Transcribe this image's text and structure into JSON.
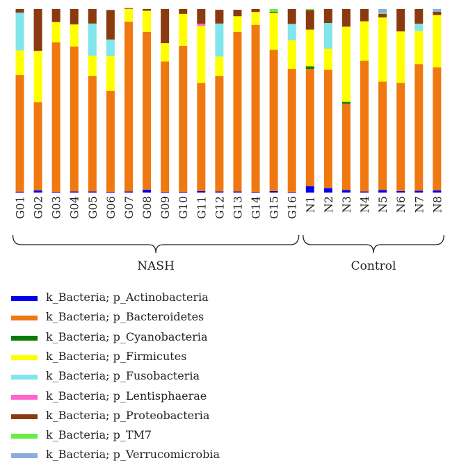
{
  "chart_data": {
    "type": "bar",
    "stacked": true,
    "normalized": true,
    "ylim": [
      0,
      1
    ],
    "categories": [
      "G01",
      "G02",
      "G03",
      "G04",
      "G05",
      "G06",
      "G07",
      "G08",
      "G09",
      "G10",
      "G11",
      "G12",
      "G13",
      "G14",
      "G15",
      "G16",
      "N1",
      "N2",
      "N3",
      "N4",
      "N5",
      "N6",
      "N7",
      "N8"
    ],
    "groups": [
      {
        "label": "NASH",
        "start": 0,
        "end": 15
      },
      {
        "label": "Control",
        "start": 16,
        "end": 23
      }
    ],
    "series": [
      {
        "name": "k_Bacteria; p_Actinobacteria",
        "color": "#0000ee",
        "values": [
          0.005,
          0.012,
          0.004,
          0.006,
          0.006,
          0.004,
          0.006,
          0.016,
          0.004,
          0.004,
          0.008,
          0.006,
          0.006,
          0.004,
          0.008,
          0.004,
          0.034,
          0.024,
          0.014,
          0.006,
          0.014,
          0.008,
          0.01,
          0.012
        ]
      },
      {
        "name": "k_Bacteria; p_Bacteroidetes",
        "color": "#f07810",
        "values": [
          0.635,
          0.48,
          0.815,
          0.79,
          0.63,
          0.55,
          0.925,
          0.86,
          0.71,
          0.795,
          0.59,
          0.63,
          0.87,
          0.91,
          0.77,
          0.67,
          0.64,
          0.645,
          0.47,
          0.712,
          0.59,
          0.59,
          0.69,
          0.67
        ]
      },
      {
        "name": "k_Bacteria; p_Cyanobacteria",
        "color": "#0a7a0a",
        "values": [
          0,
          0,
          0,
          0,
          0,
          0,
          0,
          0,
          0,
          0,
          0,
          0,
          0,
          0,
          0,
          0,
          0.014,
          0,
          0.01,
          0,
          0,
          0,
          0,
          0
        ]
      },
      {
        "name": "k_Bacteria; p_Firmicutes",
        "color": "#ffff00",
        "values": [
          0.135,
          0.28,
          0.11,
          0.12,
          0.11,
          0.19,
          0.07,
          0.115,
          0.1,
          0.175,
          0.31,
          0.105,
          0.085,
          0.07,
          0.2,
          0.155,
          0.2,
          0.115,
          0.41,
          0.215,
          0.35,
          0.28,
          0.18,
          0.285
        ]
      },
      {
        "name": "k_Bacteria; p_Fusobacteria",
        "color": "#80e6ec",
        "values": [
          0.205,
          0,
          0,
          0,
          0.175,
          0.09,
          0,
          0,
          0,
          0,
          0,
          0.18,
          0,
          0,
          0,
          0.09,
          0,
          0.14,
          0,
          0,
          0,
          0,
          0.04,
          0
        ]
      },
      {
        "name": "k_Bacteria; p_Lentisphaerae",
        "color": "#ff66cc",
        "values": [
          0,
          0,
          0,
          0,
          0,
          0,
          0,
          0,
          0,
          0,
          0.012,
          0,
          0,
          0,
          0,
          0,
          0,
          0,
          0,
          0,
          0,
          0,
          0,
          0
        ]
      },
      {
        "name": "k_Bacteria; p_Proteobacteria",
        "color": "#8b3a0f",
        "values": [
          0.02,
          0.228,
          0.071,
          0.084,
          0.079,
          0.161,
          0.004,
          0.009,
          0.186,
          0.026,
          0.08,
          0.075,
          0.035,
          0.016,
          0.006,
          0.081,
          0.107,
          0.076,
          0.096,
          0.067,
          0.02,
          0.122,
          0.08,
          0.018
        ]
      },
      {
        "name": "k_Bacteria; p_TM7",
        "color": "#66ee44",
        "values": [
          0,
          0,
          0,
          0,
          0,
          0,
          0,
          0,
          0,
          0,
          0,
          0,
          0,
          0,
          0.016,
          0,
          0.005,
          0,
          0,
          0,
          0.004,
          0,
          0,
          0
        ]
      },
      {
        "name": "k_Bacteria; p_Verrucomicrobia",
        "color": "#8aaedc",
        "values": [
          0,
          0,
          0,
          0,
          0,
          0,
          0,
          0,
          0,
          0,
          0,
          0,
          0,
          0,
          0,
          0,
          0,
          0,
          0,
          0,
          0.022,
          0,
          0,
          0.015
        ]
      }
    ]
  }
}
